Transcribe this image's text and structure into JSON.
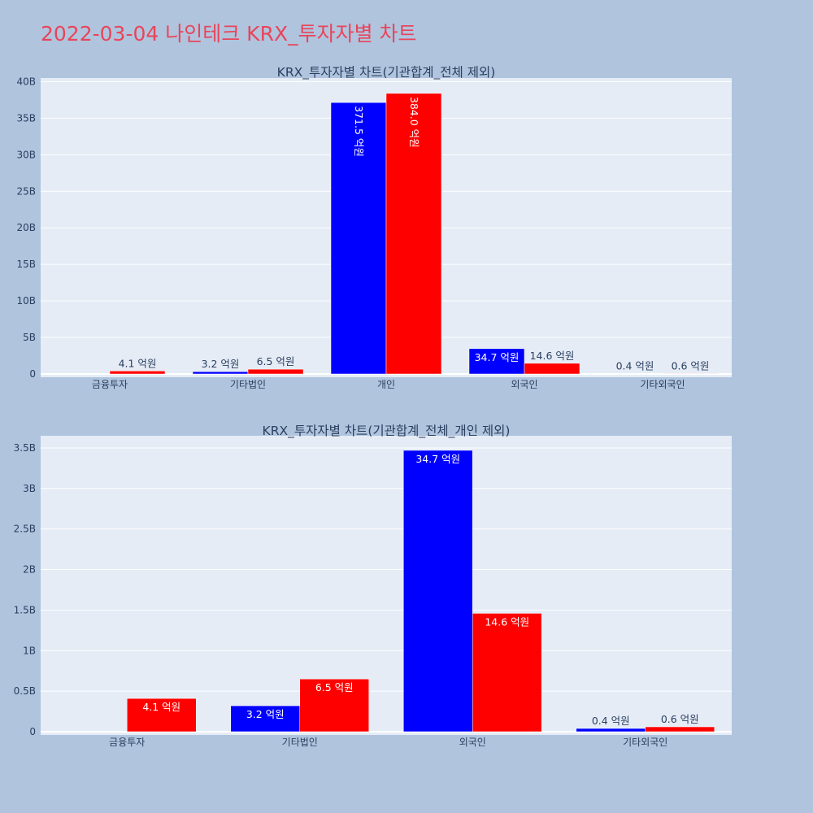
{
  "page": {
    "title": "2022-03-04 나인테크 KRX_투자자별 차트",
    "title_color": "#e8455a",
    "background": "#b0c4de",
    "plot_background": "#e5ecf6",
    "grid_color": "#ffffff"
  },
  "chart_data": [
    {
      "type": "bar",
      "title": "KRX_투자자별 차트(기관합계_전체 제외)",
      "categories": [
        "금융투자",
        "기타법인",
        "개인",
        "외국인",
        "기타외국인"
      ],
      "series": [
        {
          "color": "#0000ff",
          "values": [
            0,
            320000000,
            37150000000,
            3470000000,
            40000000
          ],
          "labels": [
            "",
            "3.2 억원",
            "371.5 억원",
            "34.7 억원",
            "0.4 억원"
          ]
        },
        {
          "color": "#ff0000",
          "values": [
            410000000,
            650000000,
            38400000000,
            1460000000,
            60000000
          ],
          "labels": [
            "4.1 억원",
            "6.5 억원",
            "384.0 억원",
            "14.6 억원",
            "0.6 억원"
          ]
        }
      ],
      "ylim": [
        0,
        40500000000
      ],
      "yticks": [
        0,
        5000000000,
        10000000000,
        15000000000,
        20000000000,
        25000000000,
        30000000000,
        35000000000,
        40000000000
      ],
      "ytick_labels": [
        "0",
        "5B",
        "10B",
        "15B",
        "20B",
        "25B",
        "30B",
        "35B",
        "40B"
      ],
      "xlabel": "",
      "ylabel": "",
      "grid": true
    },
    {
      "type": "bar",
      "title": "KRX_투자자별 차트(기관합계_전체_개인 제외)",
      "categories": [
        "금융투자",
        "기타법인",
        "외국인",
        "기타외국인"
      ],
      "series": [
        {
          "color": "#0000ff",
          "values": [
            0,
            320000000,
            3470000000,
            40000000
          ],
          "labels": [
            "",
            "3.2 억원",
            "34.7 억원",
            "0.4 억원"
          ]
        },
        {
          "color": "#ff0000",
          "values": [
            410000000,
            650000000,
            1460000000,
            60000000
          ],
          "labels": [
            "4.1 억원",
            "6.5 억원",
            "14.6 억원",
            "0.6 억원"
          ]
        }
      ],
      "ylim": [
        0,
        3650000000
      ],
      "yticks": [
        0,
        500000000,
        1000000000,
        1500000000,
        2000000000,
        2500000000,
        3000000000,
        3500000000
      ],
      "ytick_labels": [
        "0",
        "0.5B",
        "1B",
        "1.5B",
        "2B",
        "2.5B",
        "3B",
        "3.5B"
      ],
      "xlabel": "",
      "ylabel": "",
      "grid": true
    }
  ]
}
